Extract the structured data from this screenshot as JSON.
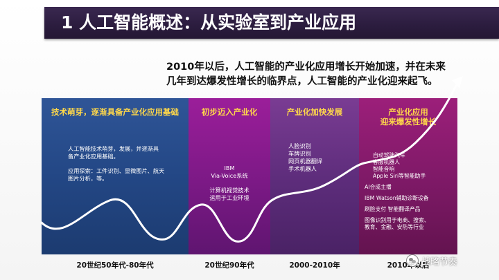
{
  "title": "1 人工智能概述：从实验室到产业应用",
  "intro": {
    "line1": "2010年以后，人工智能的产业化应用增长开始加速，并在未来",
    "line2": "几年到达爆发性增长的临界点，人工智能的产业化迎来起飞。"
  },
  "panels": [
    {
      "heading": "技术萌芽，逐渐具备产业化应用基础",
      "lines": [
        "人工智能技术萌芽，发展，并逐渐具",
        "备产业化应用基础。",
        "",
        "应用探索：工件识别、显微图片、航天",
        "图片分析，等。"
      ]
    },
    {
      "heading": "初步迈入产业化",
      "lines": [
        "IBM",
        "Via-Voice系统",
        "",
        "计算机视觉技术",
        "运用于工业环境"
      ]
    },
    {
      "heading": "产业化加快发展",
      "lines": [
        "人脸识别",
        "车牌识别",
        "网页机器翻译",
        "手术机器人"
      ]
    },
    {
      "heading_line1": "产业化应用",
      "heading_line2": "迎来爆发性增长",
      "lines": [
        "自动驾驶汽车",
        "客服机器人",
        "智能音响",
        "Apple Siri等智能助手",
        "",
        "AI合成主播",
        "",
        "IBM Watson辅助诊断设备",
        "",
        "刷脸支付  智能翻译产品",
        "",
        "图像识别用于电商、搜索、",
        "教育、金融、安防等行业"
      ]
    }
  ],
  "eras": [
    "20世纪50年代-80年代",
    "20世纪90年代",
    "2000-2010年",
    "2010年以后"
  ],
  "watermark": "战略节奏"
}
